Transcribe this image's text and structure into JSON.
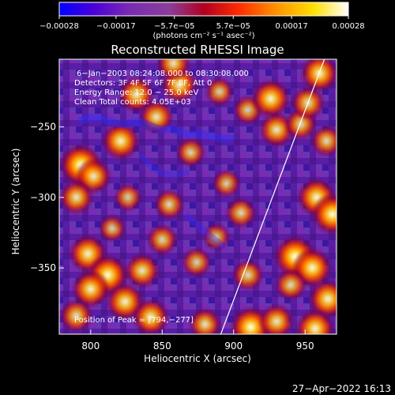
{
  "chart_data": {
    "type": "heatmap",
    "title": "Reconstructed RHESSI Image",
    "xlabel": "Heliocentric X (arcsec)",
    "ylabel": "Heliocentric Y (arcsec)",
    "xlim": [
      778,
      972
    ],
    "ylim": [
      -397,
      -202
    ],
    "x_ticks": [
      {
        "value": 800,
        "label": "800"
      },
      {
        "value": 850,
        "label": "850"
      },
      {
        "value": 900,
        "label": "900"
      },
      {
        "value": 950,
        "label": "950"
      }
    ],
    "y_ticks": [
      {
        "value": -250,
        "label": "−250"
      },
      {
        "value": -300,
        "label": "−300"
      },
      {
        "value": -350,
        "label": "−350"
      }
    ],
    "colorbar": {
      "range": [
        -0.00028,
        0.00028
      ],
      "ticks": [
        {
          "value": -0.00028,
          "label": "−0.00028"
        },
        {
          "value": -0.00017,
          "label": "−0.00017"
        },
        {
          "value": -5.7e-05,
          "label": "−5.7e−05"
        },
        {
          "value": 5.7e-05,
          "label": "5.7e−05"
        },
        {
          "value": 0.00017,
          "label": "0.00017"
        },
        {
          "value": 0.00028,
          "label": "0.00028"
        }
      ],
      "unit_label": "(photons cm⁻² s⁻¹ asec⁻²)",
      "colors": [
        "#0000ff",
        "#4b00d8",
        "#7a2ab3",
        "#8a3f9a",
        "#b00020",
        "#ff2a00",
        "#ff8a00",
        "#ffe000",
        "#ffffff"
      ]
    },
    "annotations": [
      "6−Jan−2003 08:24:08.000 to 08:30:08.000",
      "Detectors: 3F 4F 5F 6F 7F 8F, Att 0",
      "Energy Range: 12.0 − 25.0 keV",
      "Clean    Total counts: 4.05E+03"
    ],
    "peak_label": "Position of Peak = [794,−277]",
    "limb_line": [
      {
        "x": 891.0,
        "y": -397.0
      },
      {
        "x": 963.5,
        "y": -202.0
      }
    ],
    "source_regions": [
      {
        "x": 793,
        "y": -277,
        "intensity": 1.0
      },
      {
        "x": 802,
        "y": -285,
        "intensity": 0.76
      },
      {
        "x": 790,
        "y": -300,
        "intensity": 0.72
      },
      {
        "x": 821,
        "y": -260,
        "intensity": 0.85
      },
      {
        "x": 832,
        "y": -227,
        "intensity": 0.78
      },
      {
        "x": 846,
        "y": -243,
        "intensity": 0.72
      },
      {
        "x": 862,
        "y": -220,
        "intensity": 0.8
      },
      {
        "x": 870,
        "y": -268,
        "intensity": 0.55
      },
      {
        "x": 858,
        "y": -205,
        "intensity": 0.7
      },
      {
        "x": 890,
        "y": -225,
        "intensity": 0.52
      },
      {
        "x": 910,
        "y": -238,
        "intensity": 0.55
      },
      {
        "x": 926,
        "y": -230,
        "intensity": 0.88
      },
      {
        "x": 930,
        "y": -252,
        "intensity": 0.74
      },
      {
        "x": 947,
        "y": -248,
        "intensity": 0.64
      },
      {
        "x": 965,
        "y": -260,
        "intensity": 0.62
      },
      {
        "x": 952,
        "y": -233,
        "intensity": 0.7
      },
      {
        "x": 960,
        "y": -212,
        "intensity": 0.85
      },
      {
        "x": 895,
        "y": -290,
        "intensity": 0.5
      },
      {
        "x": 905,
        "y": -311,
        "intensity": 0.58
      },
      {
        "x": 958,
        "y": -300,
        "intensity": 0.88
      },
      {
        "x": 969,
        "y": -312,
        "intensity": 0.95
      },
      {
        "x": 943,
        "y": -342,
        "intensity": 1.0
      },
      {
        "x": 955,
        "y": -350,
        "intensity": 0.9
      },
      {
        "x": 940,
        "y": -362,
        "intensity": 0.62
      },
      {
        "x": 966,
        "y": -372,
        "intensity": 0.88
      },
      {
        "x": 910,
        "y": -355,
        "intensity": 0.62
      },
      {
        "x": 912,
        "y": -392,
        "intensity": 0.96
      },
      {
        "x": 930,
        "y": -388,
        "intensity": 0.75
      },
      {
        "x": 957,
        "y": -393,
        "intensity": 0.88
      },
      {
        "x": 880,
        "y": -390,
        "intensity": 0.66
      },
      {
        "x": 798,
        "y": -340,
        "intensity": 0.86
      },
      {
        "x": 812,
        "y": -355,
        "intensity": 0.94
      },
      {
        "x": 800,
        "y": -365,
        "intensity": 0.84
      },
      {
        "x": 824,
        "y": -374,
        "intensity": 0.84
      },
      {
        "x": 836,
        "y": -352,
        "intensity": 0.74
      },
      {
        "x": 842,
        "y": -385,
        "intensity": 0.82
      },
      {
        "x": 790,
        "y": -384,
        "intensity": 0.68
      },
      {
        "x": 850,
        "y": -330,
        "intensity": 0.6
      },
      {
        "x": 855,
        "y": -305,
        "intensity": 0.58
      },
      {
        "x": 874,
        "y": -346,
        "intensity": 0.55
      },
      {
        "x": 888,
        "y": -328,
        "intensity": 0.48
      },
      {
        "x": 826,
        "y": -300,
        "intensity": 0.5
      },
      {
        "x": 815,
        "y": -322,
        "intensity": 0.48
      }
    ]
  },
  "timestamp": "27−Apr−2022 16:13"
}
